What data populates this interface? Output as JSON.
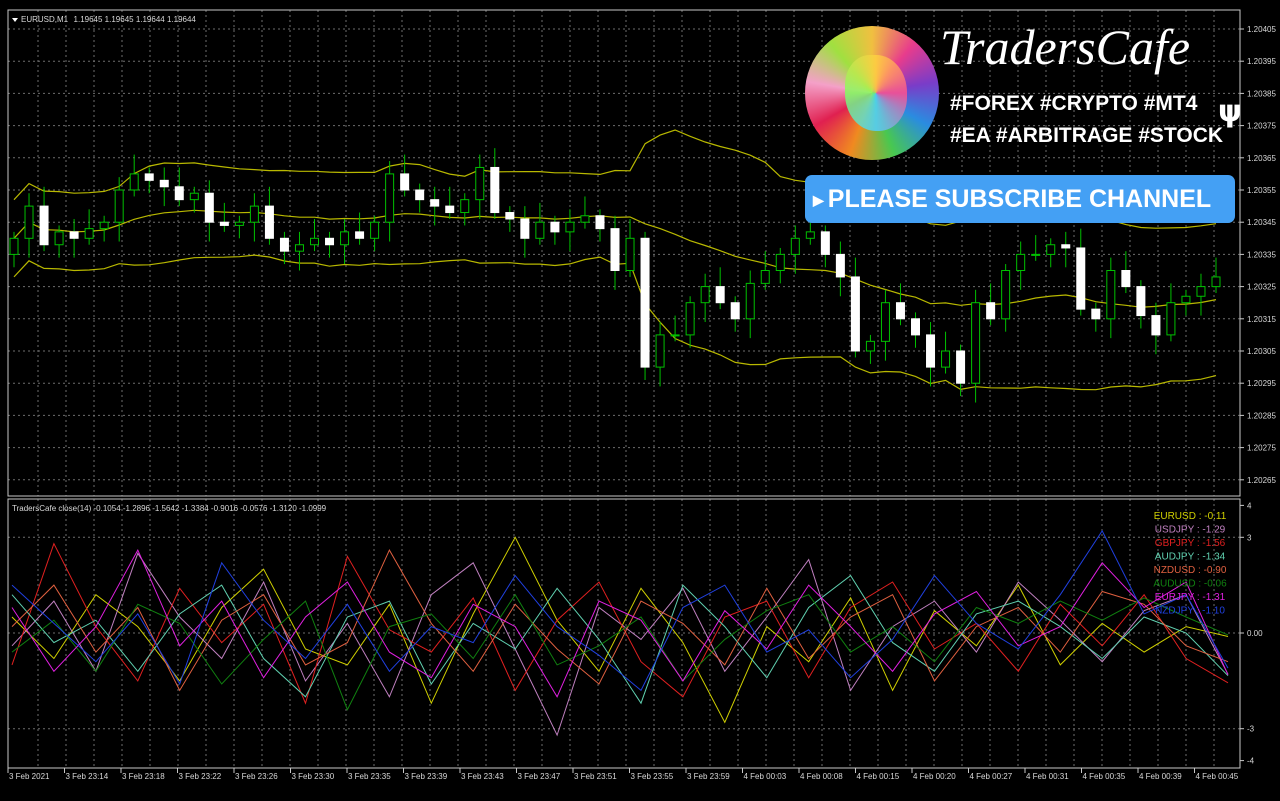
{
  "main_header": {
    "symbol": "EURUSD,M1",
    "ohlc": "1.19645 1.19645 1.19644 1.19644"
  },
  "indicator_header": "TradersCafe close(14) -0.1054 -1.2896 -1.5642 -1.3384 -0.9016 -0.0576 -1.3120 -1.0999",
  "colors": {
    "background": "#000000",
    "grid": "#6e6e6e",
    "candle_up": "#00c000",
    "candle_down": "#ffffff",
    "bands": "#b8b800",
    "axis": "#c8c8c8",
    "subscribe_bg": "#44a0f4"
  },
  "promo": {
    "brand": "TradersCafe",
    "tags_line1": "#FOREX #CRYPTO #MT4",
    "tags_line2": "#EA #ARBITRAGE #STOCK",
    "subscribe_label": "PLEASE SUBSCRIBE CHANNEL",
    "icons": {
      "logo": "lion-logo",
      "cactus": "cactus-icon",
      "play": "play-arrow-icon"
    }
  },
  "chart_data": [
    {
      "type": "candlestick",
      "symbol": "EURUSD",
      "timeframe": "M1",
      "y_ticks": [
        "1.20405",
        "1.20395",
        "1.20385",
        "1.20375",
        "1.20365",
        "1.20355",
        "1.20345",
        "1.20335",
        "1.20325",
        "1.20315",
        "1.20305",
        "1.20295",
        "1.20285",
        "1.20275",
        "1.20265"
      ],
      "ylim": [
        1.20262,
        1.20411
      ],
      "overlay": "Bollinger Bands (20)",
      "closes": [
        1.2034,
        1.2035,
        1.20338,
        1.20342,
        1.2034,
        1.20343,
        1.20345,
        1.20355,
        1.2036,
        1.20358,
        1.20356,
        1.20352,
        1.20354,
        1.20345,
        1.20344,
        1.20345,
        1.2035,
        1.2034,
        1.20336,
        1.20338,
        1.2034,
        1.20338,
        1.20342,
        1.2034,
        1.20345,
        1.2036,
        1.20355,
        1.20352,
        1.2035,
        1.20348,
        1.20352,
        1.20362,
        1.20348,
        1.20346,
        1.2034,
        1.20345,
        1.20342,
        1.20345,
        1.20347,
        1.20343,
        1.2033,
        1.2034,
        1.203,
        1.2031,
        1.2031,
        1.2032,
        1.20325,
        1.2032,
        1.20315,
        1.20326,
        1.2033,
        1.20335,
        1.2034,
        1.20342,
        1.20335,
        1.20328,
        1.20305,
        1.20308,
        1.2032,
        1.20315,
        1.2031,
        1.203,
        1.20305,
        1.20295,
        1.2032,
        1.20315,
        1.2033,
        1.20335,
        1.20335,
        1.20338,
        1.20337,
        1.20318,
        1.20315,
        1.2033,
        1.20325,
        1.20316,
        1.2031,
        1.2032,
        1.20322,
        1.20325,
        1.20328
      ],
      "open_first": 1.20335,
      "x_ticks": [
        "3 Feb 2021",
        "3 Feb 23:14",
        "3 Feb 23:18",
        "3 Feb 23:22",
        "3 Feb 23:26",
        "3 Feb 23:30",
        "3 Feb 23:35",
        "3 Feb 23:39",
        "3 Feb 23:43",
        "3 Feb 23:47",
        "3 Feb 23:51",
        "3 Feb 23:55",
        "3 Feb 23:59",
        "4 Feb 00:03",
        "4 Feb 00:08",
        "4 Feb 00:15",
        "4 Feb 00:20",
        "4 Feb 00:27",
        "4 Feb 00:31",
        "4 Feb 00:35",
        "4 Feb 00:39",
        "4 Feb 00:45"
      ]
    },
    {
      "type": "line",
      "title": "TradersCafe close(14)",
      "y_ticks": [
        "4",
        "3",
        "0.00",
        "-3",
        "-4"
      ],
      "y_tick_values": [
        4,
        3,
        0,
        -3,
        -4
      ],
      "ylim": [
        -4.2,
        4.2
      ],
      "series": [
        {
          "name": "EURUSD",
          "label": "EURUSD : -0.11",
          "color": "#d0d000",
          "values": [
            0.5,
            -0.8,
            1.2,
            0.2,
            -1.5,
            0.8,
            2.0,
            -0.5,
            -1.0,
            0.9,
            -2.2,
            0.6,
            3.0,
            0.4,
            -1.2,
            1.4,
            -0.3,
            -2.8,
            0.2,
            -0.9,
            1.1,
            -1.8,
            0.7,
            -0.4,
            1.5,
            -1.0,
            0.3,
            -0.6,
            0.2,
            -0.11
          ]
        },
        {
          "name": "USDJPY",
          "label": "USDJPY : -1.29",
          "color": "#c080c0",
          "values": [
            -0.4,
            1.0,
            -1.2,
            2.5,
            0.5,
            -0.8,
            1.6,
            -1.5,
            0.3,
            -2.0,
            1.2,
            2.2,
            -0.5,
            -3.2,
            0.8,
            -0.2,
            1.4,
            -1.2,
            0.5,
            2.3,
            -1.8,
            0.2,
            1.0,
            -0.6,
            1.6,
            0.4,
            -0.9,
            0.7,
            1.2,
            -1.29
          ]
        },
        {
          "name": "GBPJPY",
          "label": "GBPJPY : -1.56",
          "color": "#e02020",
          "values": [
            -1.0,
            2.8,
            0.2,
            -1.5,
            1.4,
            -0.3,
            0.9,
            -2.2,
            2.4,
            0.1,
            -0.6,
            1.1,
            -1.8,
            0.4,
            1.6,
            -0.9,
            -2.0,
            0.5,
            1.0,
            -1.4,
            0.8,
            1.6,
            -0.5,
            0.3,
            -1.2,
            0.9,
            -0.4,
            1.2,
            -0.8,
            -1.56
          ]
        },
        {
          "name": "AUDJPY",
          "label": "AUDJPY : -1.34",
          "color": "#60d0b0",
          "values": [
            1.2,
            -0.3,
            0.4,
            -1.2,
            0.6,
            1.5,
            -0.8,
            -2.0,
            0.5,
            1.0,
            -1.6,
            0.3,
            -0.5,
            1.4,
            -0.2,
            -2.2,
            1.5,
            0.2,
            -1.4,
            0.8,
            1.8,
            -0.3,
            -1.2,
            0.6,
            1.0,
            0.2,
            -0.8,
            0.5,
            0.0,
            -1.34
          ]
        },
        {
          "name": "NZDUSD",
          "label": "NZDUSD : -0.90",
          "color": "#e06040",
          "values": [
            0.2,
            1.5,
            -0.6,
            0.8,
            -1.8,
            0.4,
            1.2,
            -1.0,
            -0.3,
            2.6,
            0.3,
            -1.2,
            0.9,
            -0.5,
            -1.6,
            1.0,
            0.3,
            -1.0,
            1.4,
            -0.8,
            0.5,
            1.2,
            -1.5,
            0.2,
            0.8,
            -0.6,
            1.3,
            0.9,
            -0.4,
            -0.9
          ]
        },
        {
          "name": "AUDUSD",
          "label": "AUDUSD : -0.06",
          "color": "#108010",
          "values": [
            -0.6,
            0.4,
            -1.2,
            0.9,
            0.3,
            -1.6,
            -0.2,
            1.0,
            -2.4,
            0.2,
            0.6,
            -0.8,
            1.2,
            -1.0,
            -0.4,
            0.5,
            -1.5,
            -0.2,
            0.7,
            1.2,
            -0.6,
            0.2,
            -0.9,
            0.8,
            0.3,
            1.0,
            0.4,
            1.1,
            0.5,
            -0.06
          ]
        },
        {
          "name": "EURJPY",
          "label": "EURJPY : -1.31",
          "color": "#e020e0",
          "values": [
            0.8,
            -1.2,
            0.2,
            2.6,
            -0.4,
            1.0,
            -1.4,
            0.5,
            1.6,
            -0.6,
            -1.4,
            0.9,
            0.2,
            -2.0,
            1.0,
            0.4,
            -1.5,
            0.7,
            -0.5,
            1.5,
            0.2,
            -1.2,
            0.6,
            1.3,
            -0.4,
            0.2,
            2.2,
            0.8,
            1.6,
            -1.31
          ]
        },
        {
          "name": "NZDJPY",
          "label": "NZDJPY : -1.10",
          "color": "#2040e0",
          "values": [
            1.5,
            0.3,
            -0.9,
            0.6,
            -1.6,
            2.2,
            0.4,
            -0.8,
            0.9,
            -1.2,
            0.2,
            -0.3,
            1.8,
            0.2,
            -0.7,
            -1.8,
            0.8,
            1.5,
            -0.6,
            0.1,
            -1.4,
            -0.2,
            1.8,
            0.3,
            -0.5,
            1.2,
            3.2,
            0.6,
            1.2,
            -1.1
          ]
        }
      ]
    }
  ]
}
